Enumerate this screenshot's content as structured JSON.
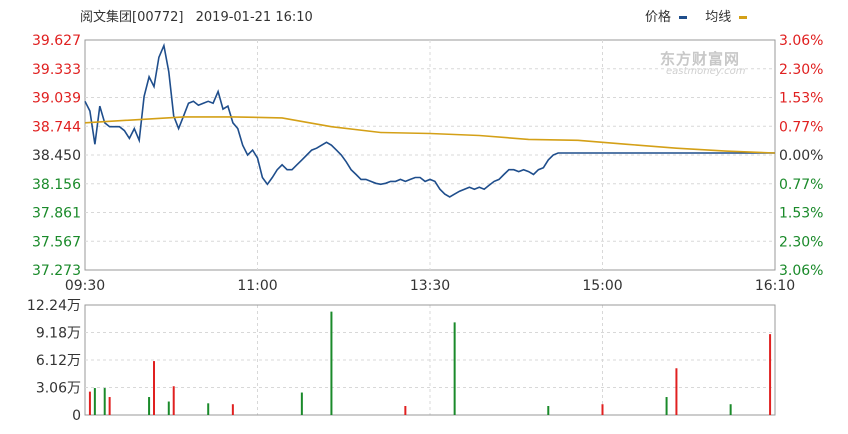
{
  "header": {
    "stock_name": "阅文集团[00772]",
    "datetime": "2019-01-21 16:10",
    "legend_price": "价格",
    "legend_avg": "均线"
  },
  "watermark": {
    "brand": "东方财富网",
    "domain": "eastmoney.com"
  },
  "colors": {
    "price": "#1f4e8c",
    "avg": "#d4a017",
    "up": "#e02020",
    "down": "#1a8a2a",
    "grid": "#d8d8d8",
    "frame": "#999999"
  },
  "chart_data": [
    {
      "type": "line",
      "title": "阅文集团[00772] 2019-01-21 16:10",
      "price_ticks_left": [
        "39.627",
        "39.333",
        "39.039",
        "38.744",
        "38.450",
        "38.156",
        "37.861",
        "37.567",
        "37.273"
      ],
      "pct_ticks_right": [
        "3.06%",
        "2.30%",
        "1.53%",
        "0.77%",
        "0.00%",
        "0.77%",
        "1.53%",
        "2.30%",
        "3.06%"
      ],
      "x_ticks": [
        "09:30",
        "11:00",
        "13:30",
        "15:00",
        "16:10"
      ],
      "ylim": [
        37.273,
        39.627
      ],
      "prev_close": 38.45,
      "series": [
        {
          "name": "价格",
          "x": [
            0,
            2,
            4,
            6,
            8,
            10,
            12,
            14,
            16,
            18,
            20,
            22,
            24,
            26,
            28,
            30,
            32,
            34,
            36,
            38,
            40,
            42,
            44,
            46,
            48,
            50,
            52,
            54,
            56,
            58,
            60,
            62,
            64,
            66,
            68,
            70,
            72,
            74,
            76,
            78,
            80,
            82,
            84,
            86,
            88,
            90,
            92,
            94,
            96,
            98,
            100,
            102,
            104,
            106,
            108,
            110,
            112,
            114,
            116,
            118,
            120,
            122,
            124,
            126,
            128,
            130,
            132,
            134,
            136,
            138,
            140,
            142,
            144,
            146,
            148,
            150,
            152,
            154,
            156,
            158,
            160,
            162,
            164,
            166,
            168,
            170,
            172,
            174,
            176,
            178,
            180,
            182,
            184,
            186,
            188,
            190,
            192,
            194,
            196,
            198,
            200,
            202,
            204,
            206,
            208,
            210,
            212,
            214,
            216,
            218,
            220,
            222,
            224,
            226,
            228,
            230,
            232,
            234,
            236,
            238,
            240,
            242,
            244,
            246,
            248,
            250,
            252,
            254,
            256,
            258,
            260,
            262,
            264,
            266,
            268,
            270,
            272,
            274,
            276,
            278,
            280
          ],
          "values": [
            39.0,
            38.9,
            38.56,
            38.95,
            38.78,
            38.74,
            38.74,
            38.74,
            38.7,
            38.62,
            38.72,
            38.6,
            39.05,
            39.25,
            39.15,
            39.45,
            39.57,
            39.3,
            38.85,
            38.72,
            38.85,
            38.98,
            39.0,
            38.96,
            38.98,
            39.0,
            38.98,
            39.1,
            38.92,
            38.95,
            38.78,
            38.72,
            38.55,
            38.45,
            38.5,
            38.42,
            38.22,
            38.15,
            38.22,
            38.3,
            38.35,
            38.3,
            38.3,
            38.35,
            38.4,
            38.45,
            38.5,
            38.52,
            38.55,
            38.58,
            38.55,
            38.5,
            38.45,
            38.38,
            38.3,
            38.25,
            38.2,
            38.2,
            38.18,
            38.16,
            38.15,
            38.16,
            38.18,
            38.18,
            38.2,
            38.18,
            38.2,
            38.22,
            38.22,
            38.18,
            38.2,
            38.18,
            38.1,
            38.05,
            38.02,
            38.05,
            38.08,
            38.1,
            38.12,
            38.1,
            38.12,
            38.1,
            38.14,
            38.18,
            38.2,
            38.25,
            38.3,
            38.3,
            38.28,
            38.3,
            38.28,
            38.25,
            38.3,
            38.32,
            38.4,
            38.45,
            38.47,
            38.47,
            38.47,
            38.47,
            38.47,
            38.47,
            38.47,
            38.47,
            38.47,
            38.47,
            38.47,
            38.47,
            38.47,
            38.47,
            38.47,
            38.47,
            38.47,
            38.47,
            38.47,
            38.47,
            38.47,
            38.47,
            38.47,
            38.47,
            38.47,
            38.47,
            38.47,
            38.47,
            38.47,
            38.47,
            38.47,
            38.47,
            38.47,
            38.47,
            38.47,
            38.47,
            38.47,
            38.47,
            38.47,
            38.47,
            38.47,
            38.47,
            38.47,
            38.47,
            38.47
          ]
        },
        {
          "name": "均线",
          "x": [
            0,
            40,
            60,
            80,
            100,
            120,
            140,
            160,
            180,
            200,
            220,
            240,
            260,
            280
          ],
          "values": [
            38.78,
            38.84,
            38.84,
            38.83,
            38.74,
            38.68,
            38.67,
            38.65,
            38.61,
            38.6,
            38.56,
            38.52,
            38.49,
            38.47
          ]
        }
      ]
    },
    {
      "type": "bar",
      "title": "",
      "vol_ticks": [
        "12.24万",
        "9.18万",
        "6.12万",
        "3.06万",
        "0"
      ],
      "ylim": [
        0,
        12.24
      ],
      "bars_up": [
        [
          2,
          2.6
        ],
        [
          10,
          2.0
        ],
        [
          28,
          6.0
        ],
        [
          36,
          3.2
        ],
        [
          60,
          1.2
        ],
        [
          130,
          1.0
        ],
        [
          210,
          1.2
        ],
        [
          240,
          5.2
        ],
        [
          278,
          9.0
        ]
      ],
      "bars_down": [
        [
          4,
          3.0
        ],
        [
          8,
          3.0
        ],
        [
          26,
          2.0
        ],
        [
          34,
          1.5
        ],
        [
          50,
          1.3
        ],
        [
          88,
          2.5
        ],
        [
          100,
          11.5
        ],
        [
          150,
          10.3
        ],
        [
          188,
          1.0
        ],
        [
          236,
          2.0
        ],
        [
          262,
          1.2
        ]
      ]
    }
  ]
}
